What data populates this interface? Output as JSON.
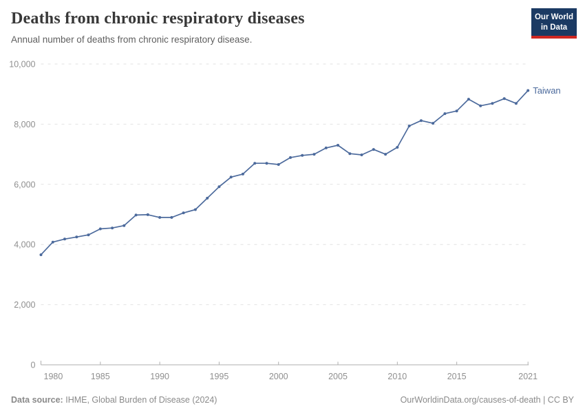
{
  "header": {
    "title": "Deaths from chronic respiratory diseases",
    "subtitle": "Annual number of deaths from chronic respiratory disease."
  },
  "logo": {
    "line1": "Our World",
    "line2": "in Data"
  },
  "chart_data": {
    "type": "line",
    "title": "Deaths from chronic respiratory diseases",
    "xlabel": "",
    "ylabel": "",
    "x": [
      1980,
      1981,
      1982,
      1983,
      1984,
      1985,
      1986,
      1987,
      1988,
      1989,
      1990,
      1991,
      1992,
      1993,
      1994,
      1995,
      1996,
      1997,
      1998,
      1999,
      2000,
      2001,
      2002,
      2003,
      2004,
      2005,
      2006,
      2007,
      2008,
      2009,
      2010,
      2011,
      2012,
      2013,
      2014,
      2015,
      2016,
      2017,
      2018,
      2019,
      2020,
      2021
    ],
    "series": [
      {
        "name": "Taiwan",
        "values": [
          3660,
          4080,
          4180,
          4250,
          4320,
          4520,
          4550,
          4630,
          4980,
          4990,
          4900,
          4900,
          5050,
          5160,
          5540,
          5920,
          6240,
          6340,
          6700,
          6700,
          6660,
          6890,
          6960,
          7000,
          7210,
          7300,
          7020,
          6980,
          7160,
          7000,
          7230,
          7940,
          8120,
          8030,
          8350,
          8440,
          8830,
          8610,
          8690,
          8850,
          8690,
          9120
        ]
      }
    ],
    "ylim": [
      0,
      10000
    ],
    "yticks": [
      0,
      2000,
      4000,
      6000,
      8000,
      10000
    ],
    "xticks": [
      1980,
      1985,
      1990,
      1995,
      2000,
      2005,
      2010,
      2015,
      2021
    ],
    "grid": "horizontal-dashed",
    "legend": "end-of-line-label"
  },
  "footer": {
    "source_label": "Data source:",
    "source_text": "IHME, Global Burden of Disease (2024)",
    "attribution": "OurWorldinData.org/causes-of-death | CC BY"
  },
  "colors": {
    "line": "#4c6a9c",
    "entity_label": "#4c6a9c",
    "grid": "#e2e2e2",
    "axis": "#afafaf",
    "axis_text": "#8f8f8f",
    "logo_bg": "#1b3a63",
    "logo_accent": "#cf2822"
  }
}
